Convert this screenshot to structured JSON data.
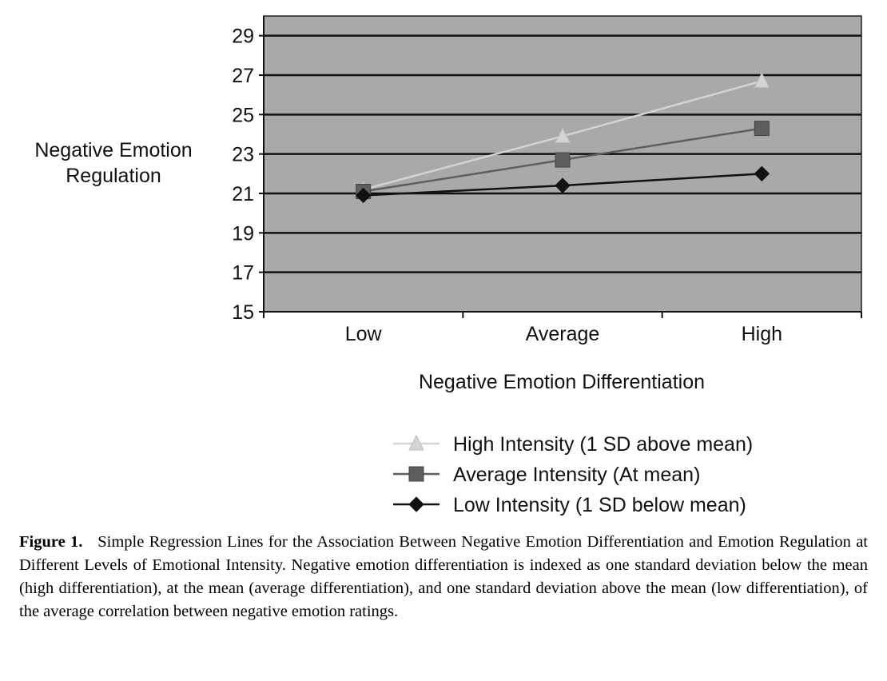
{
  "chart_data": {
    "type": "line",
    "ylabel_lines": [
      "Negative Emotion",
      "Regulation"
    ],
    "xlabel": "Negative Emotion Differentiation",
    "categories": [
      "Low",
      "Average",
      "High"
    ],
    "ylim": [
      15,
      30
    ],
    "yticks": [
      15,
      17,
      19,
      21,
      23,
      25,
      27,
      29
    ],
    "grid": true,
    "legend_position": "bottom",
    "series": [
      {
        "name": "High Intensity (1 SD above mean)",
        "marker": "triangle",
        "color": "#d4d4d4",
        "values": [
          21.2,
          23.9,
          26.7
        ]
      },
      {
        "name": "Average Intensity (At mean)",
        "marker": "square",
        "color": "#5e5e5e",
        "values": [
          21.1,
          22.7,
          24.3
        ]
      },
      {
        "name": "Low Intensity (1 SD below mean)",
        "marker": "diamond",
        "color": "#111111",
        "values": [
          20.9,
          21.4,
          22.0
        ]
      }
    ]
  },
  "caption": {
    "label": "Figure 1.",
    "text": "Simple Regression Lines for the Association Between Negative Emotion Differentiation and Emotion Regulation at Different Levels of Emotional Intensity. Negative emotion differentiation is indexed as one standard deviation below the mean (high differentiation), at the mean (average differentiation), and one standard deviation above the mean (low differentiation), of the average correlation between negative emotion ratings."
  }
}
